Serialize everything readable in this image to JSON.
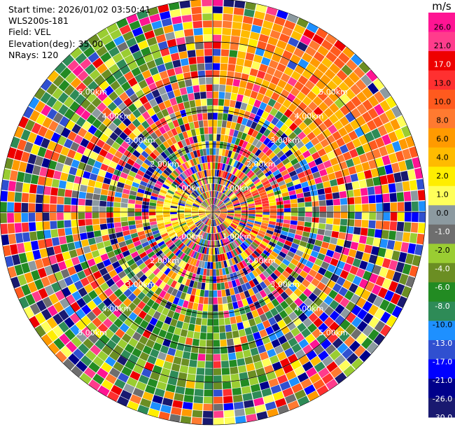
{
  "info": {
    "start_time": "Start time: 2026/01/02 03:50:41",
    "station": "WLS200s-181",
    "field": "Field: VEL",
    "elevation": "Elevation(deg): 35.00",
    "nrays": "NRays: 120"
  },
  "colorbar": {
    "unit": "m/s",
    "labels": [
      "26.0",
      "21.0",
      "17.0",
      "13.0",
      "10.0",
      "8.0",
      "6.0",
      "4.0",
      "2.0",
      "1.0",
      "0.0",
      "-1.0",
      "-2.0",
      "-4.0",
      "-6.0",
      "-8.0",
      "-10.0",
      "-13.0",
      "-17.0",
      "-21.0",
      "-26.0",
      "-30.0"
    ],
    "colors": [
      "#ff1493",
      "#ff3c8c",
      "#ee0000",
      "#ff3030",
      "#ff5a1e",
      "#ff7a30",
      "#ff9a00",
      "#ffbb00",
      "#ffee00",
      "#ffff5a",
      "#8c9aa0",
      "#6e6e6e",
      "#9acd32",
      "#6b8e23",
      "#228b22",
      "#2e8b57",
      "#1e90ff",
      "#3050d0",
      "#0000ff",
      "#00008b",
      "#191970"
    ]
  },
  "chart_data": {
    "type": "heatmap",
    "projection": "polar-ppi",
    "field": "VEL",
    "unit": "m/s",
    "nrays": 120,
    "elevation_deg": 35.0,
    "ring_labels": [
      "1.00km",
      "2.00km",
      "3.00km",
      "4.00km",
      "5.00km"
    ],
    "ring_range_km": [
      1,
      2,
      3,
      4,
      5
    ],
    "max_range_km": 6.25,
    "value_range": [
      -30,
      26
    ]
  }
}
